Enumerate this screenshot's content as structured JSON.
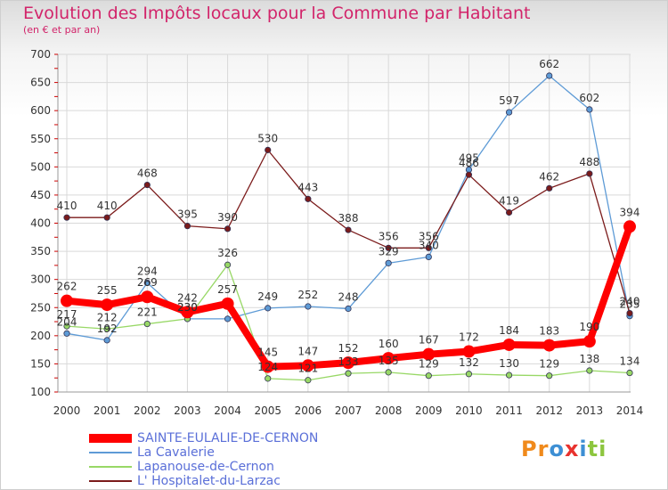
{
  "brand": "Proxiti",
  "chart_data": {
    "type": "line",
    "title": "Evolution des Impôts locaux pour la Commune par Habitant",
    "subtitle": "(en € et par an)",
    "xlabel": "",
    "ylabel": "",
    "x": [
      "2000",
      "2001",
      "2002",
      "2003",
      "2004",
      "2005",
      "2006",
      "2007",
      "2008",
      "2009",
      "2010",
      "2011",
      "2012",
      "2013",
      "2014"
    ],
    "ylim": [
      100,
      700
    ],
    "yticks": [
      100,
      150,
      200,
      250,
      300,
      350,
      400,
      450,
      500,
      550,
      600,
      650,
      700
    ],
    "grid": true,
    "legend_position": "bottom-left",
    "series": [
      {
        "name": "SAINTE-EULALIE-DE-CERNON",
        "color": "#ff0000",
        "values": [
          262,
          255,
          269,
          242,
          257,
          145,
          147,
          152,
          160,
          167,
          172,
          184,
          183,
          190,
          394
        ]
      },
      {
        "name": "La Cavalerie",
        "color": "#5e9bd6",
        "values": [
          204,
          192,
          294,
          230,
          230,
          249,
          252,
          248,
          329,
          340,
          495,
          597,
          662,
          602,
          235
        ]
      },
      {
        "name": "Lapanouse-de-Cernon",
        "color": "#98d866",
        "values": [
          217,
          212,
          221,
          230,
          326,
          124,
          121,
          133,
          135,
          129,
          132,
          130,
          129,
          138,
          134
        ]
      },
      {
        "name": "L' Hospitalet-du-Larzac",
        "color": "#7b1b1b",
        "values": [
          410,
          410,
          468,
          395,
          390,
          530,
          443,
          388,
          356,
          356,
          486,
          419,
          462,
          488,
          240
        ]
      }
    ],
    "point_labels": [
      [
        "262",
        "255",
        "269",
        "242",
        "257",
        "145",
        "147",
        "152",
        "160",
        "167",
        "172",
        "184",
        "183",
        "190",
        "394"
      ],
      [
        "204",
        "192",
        "294",
        "230",
        "",
        "249",
        "252",
        "248",
        "329",
        "340",
        "495",
        "597",
        "662",
        "602",
        "235"
      ],
      [
        "217",
        "212",
        "221",
        "230",
        "326",
        "124",
        "121",
        "133",
        "135",
        "129",
        "132",
        "130",
        "129",
        "138",
        "134"
      ],
      [
        "410",
        "410",
        "468",
        "395",
        "390",
        "530",
        "443",
        "388",
        "356",
        "356",
        "486",
        "419",
        "462",
        "488",
        "240"
      ]
    ]
  }
}
